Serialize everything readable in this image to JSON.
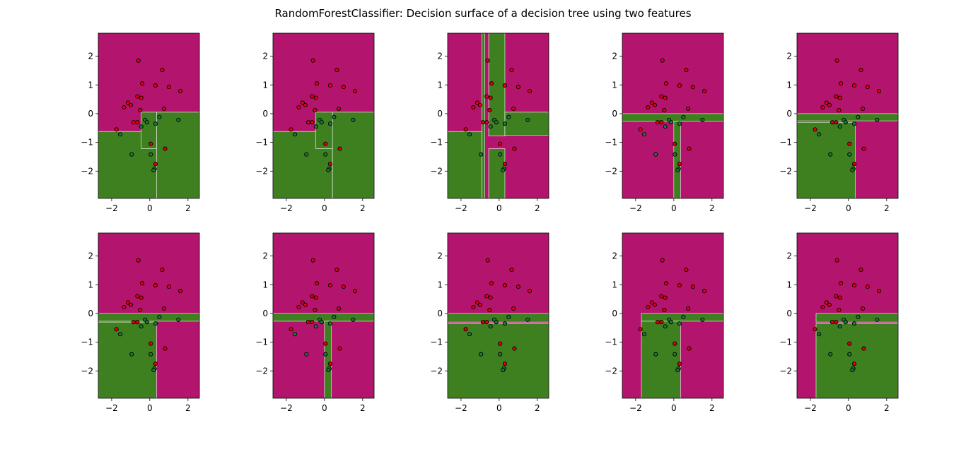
{
  "title": "RandomForestClassifier: Decision surface of a decision tree using two features",
  "colors": {
    "class_0": "#b3146e",
    "class_1": "#3e7f1f",
    "point_class_0": "#e8000b",
    "point_class_1": "#1e7a3c",
    "point_edge": "#000000",
    "boundary": "#ffffff"
  },
  "chart_data": [
    {
      "type": "scatter",
      "title": "",
      "xlabel": "",
      "ylabel": "",
      "xlim": [
        -2.7,
        2.6
      ],
      "ylim": [
        -2.95,
        2.8
      ],
      "xticks": [
        -2,
        0,
        2
      ],
      "yticks": [
        -2,
        -1,
        0,
        1,
        2
      ],
      "grid": false,
      "classes": [
        0,
        1
      ]
    }
  ],
  "points": [
    {
      "x": -0.6,
      "y": 1.85,
      "class": 0
    },
    {
      "x": 0.65,
      "y": 1.52,
      "class": 0
    },
    {
      "x": -0.4,
      "y": 1.05,
      "class": 0
    },
    {
      "x": 0.3,
      "y": 0.98,
      "class": 0
    },
    {
      "x": 1.0,
      "y": 0.93,
      "class": 0
    },
    {
      "x": 1.6,
      "y": 0.78,
      "class": 0
    },
    {
      "x": -0.65,
      "y": 0.6,
      "class": 0
    },
    {
      "x": -0.45,
      "y": 0.55,
      "class": 0
    },
    {
      "x": -1.15,
      "y": 0.38,
      "class": 0
    },
    {
      "x": -1.0,
      "y": 0.3,
      "class": 0
    },
    {
      "x": -1.35,
      "y": 0.22,
      "class": 0
    },
    {
      "x": -0.5,
      "y": 0.12,
      "class": 0
    },
    {
      "x": 0.75,
      "y": 0.17,
      "class": 0
    },
    {
      "x": -1.75,
      "y": -0.55,
      "class": 0
    },
    {
      "x": -0.85,
      "y": -0.3,
      "class": 0
    },
    {
      "x": -0.65,
      "y": -0.3,
      "class": 0
    },
    {
      "x": 0.05,
      "y": -1.05,
      "class": 0
    },
    {
      "x": 0.8,
      "y": -1.22,
      "class": 0
    },
    {
      "x": 0.3,
      "y": -1.75,
      "class": 0
    },
    {
      "x": 0.5,
      "y": -0.12,
      "class": 1
    },
    {
      "x": 1.5,
      "y": -0.22,
      "class": 1
    },
    {
      "x": -0.25,
      "y": -0.22,
      "class": 1
    },
    {
      "x": -0.15,
      "y": -0.3,
      "class": 1
    },
    {
      "x": 0.3,
      "y": -0.35,
      "class": 1
    },
    {
      "x": -0.45,
      "y": -0.45,
      "class": 1
    },
    {
      "x": -1.55,
      "y": -0.72,
      "class": 1
    },
    {
      "x": -0.95,
      "y": -1.42,
      "class": 1
    },
    {
      "x": 0.05,
      "y": -1.42,
      "class": 1
    },
    {
      "x": 0.25,
      "y": -1.92,
      "class": 1
    },
    {
      "x": 0.2,
      "y": -1.97,
      "class": 1
    }
  ],
  "trees": [
    {
      "default": 0,
      "regions": [
        {
          "x": [
            -2.7,
            0.35
          ],
          "y": [
            -2.95,
            -0.62
          ],
          "c": 1
        },
        {
          "x": [
            0.35,
            2.6
          ],
          "y": [
            -2.95,
            0.05
          ],
          "c": 1
        },
        {
          "x": [
            -0.45,
            0.35
          ],
          "y": [
            -1.22,
            0.05
          ],
          "c": 1
        }
      ]
    },
    {
      "default": 0,
      "regions": [
        {
          "x": [
            -2.7,
            0.42
          ],
          "y": [
            -2.95,
            -0.62
          ],
          "c": 1
        },
        {
          "x": [
            0.42,
            2.6
          ],
          "y": [
            -2.95,
            0.05
          ],
          "c": 1
        },
        {
          "x": [
            -0.45,
            0.42
          ],
          "y": [
            -1.22,
            0.05
          ],
          "c": 1
        }
      ]
    },
    {
      "default": 0,
      "regions": [
        {
          "x": [
            -2.7,
            -0.9
          ],
          "y": [
            -2.95,
            -0.62
          ],
          "c": 1
        },
        {
          "x": [
            -0.9,
            -0.75
          ],
          "y": [
            -2.95,
            2.8
          ],
          "c": 1
        },
        {
          "x": [
            -0.55,
            0.3
          ],
          "y": [
            -2.95,
            -1.22
          ],
          "c": 1
        },
        {
          "x": [
            -0.55,
            0.3
          ],
          "y": [
            -0.78,
            2.8
          ],
          "c": 1
        },
        {
          "x": [
            0.3,
            2.6
          ],
          "y": [
            -0.75,
            0.05
          ],
          "c": 1
        }
      ]
    },
    {
      "default": 0,
      "regions": [
        {
          "x": [
            -2.7,
            2.6
          ],
          "y": [
            -0.27,
            0.0
          ],
          "c": 1
        },
        {
          "x": [
            0.0,
            0.35
          ],
          "y": [
            -2.95,
            -0.27
          ],
          "c": 1
        }
      ]
    },
    {
      "default": 0,
      "regions": [
        {
          "x": [
            -2.7,
            2.6
          ],
          "y": [
            -0.25,
            0.0
          ],
          "c": 1
        },
        {
          "x": [
            -2.7,
            0.35
          ],
          "y": [
            -2.95,
            -0.3
          ],
          "c": 1
        }
      ]
    },
    {
      "default": 0,
      "regions": [
        {
          "x": [
            -2.7,
            2.6
          ],
          "y": [
            -0.27,
            0.0
          ],
          "c": 1
        },
        {
          "x": [
            -2.7,
            0.35
          ],
          "y": [
            -2.95,
            -0.3
          ],
          "c": 1
        }
      ]
    },
    {
      "default": 0,
      "regions": [
        {
          "x": [
            -2.7,
            2.6
          ],
          "y": [
            -0.27,
            0.0
          ],
          "c": 1
        },
        {
          "x": [
            0.0,
            0.35
          ],
          "y": [
            -2.95,
            -0.27
          ],
          "c": 1
        }
      ]
    },
    {
      "default": 0,
      "regions": [
        {
          "x": [
            -2.7,
            2.6
          ],
          "y": [
            -0.3,
            0.0
          ],
          "c": 1
        },
        {
          "x": [
            -2.7,
            2.6
          ],
          "y": [
            -2.95,
            -0.35
          ],
          "c": 1
        }
      ]
    },
    {
      "default": 0,
      "regions": [
        {
          "x": [
            -1.7,
            2.6
          ],
          "y": [
            -0.27,
            0.0
          ],
          "c": 1
        },
        {
          "x": [
            -1.7,
            0.35
          ],
          "y": [
            -2.95,
            -0.27
          ],
          "c": 1
        }
      ]
    },
    {
      "default": 0,
      "regions": [
        {
          "x": [
            -1.7,
            2.6
          ],
          "y": [
            -0.3,
            0.0
          ],
          "c": 1
        },
        {
          "x": [
            -1.7,
            2.6
          ],
          "y": [
            -2.95,
            -0.35
          ],
          "c": 1
        }
      ]
    }
  ]
}
